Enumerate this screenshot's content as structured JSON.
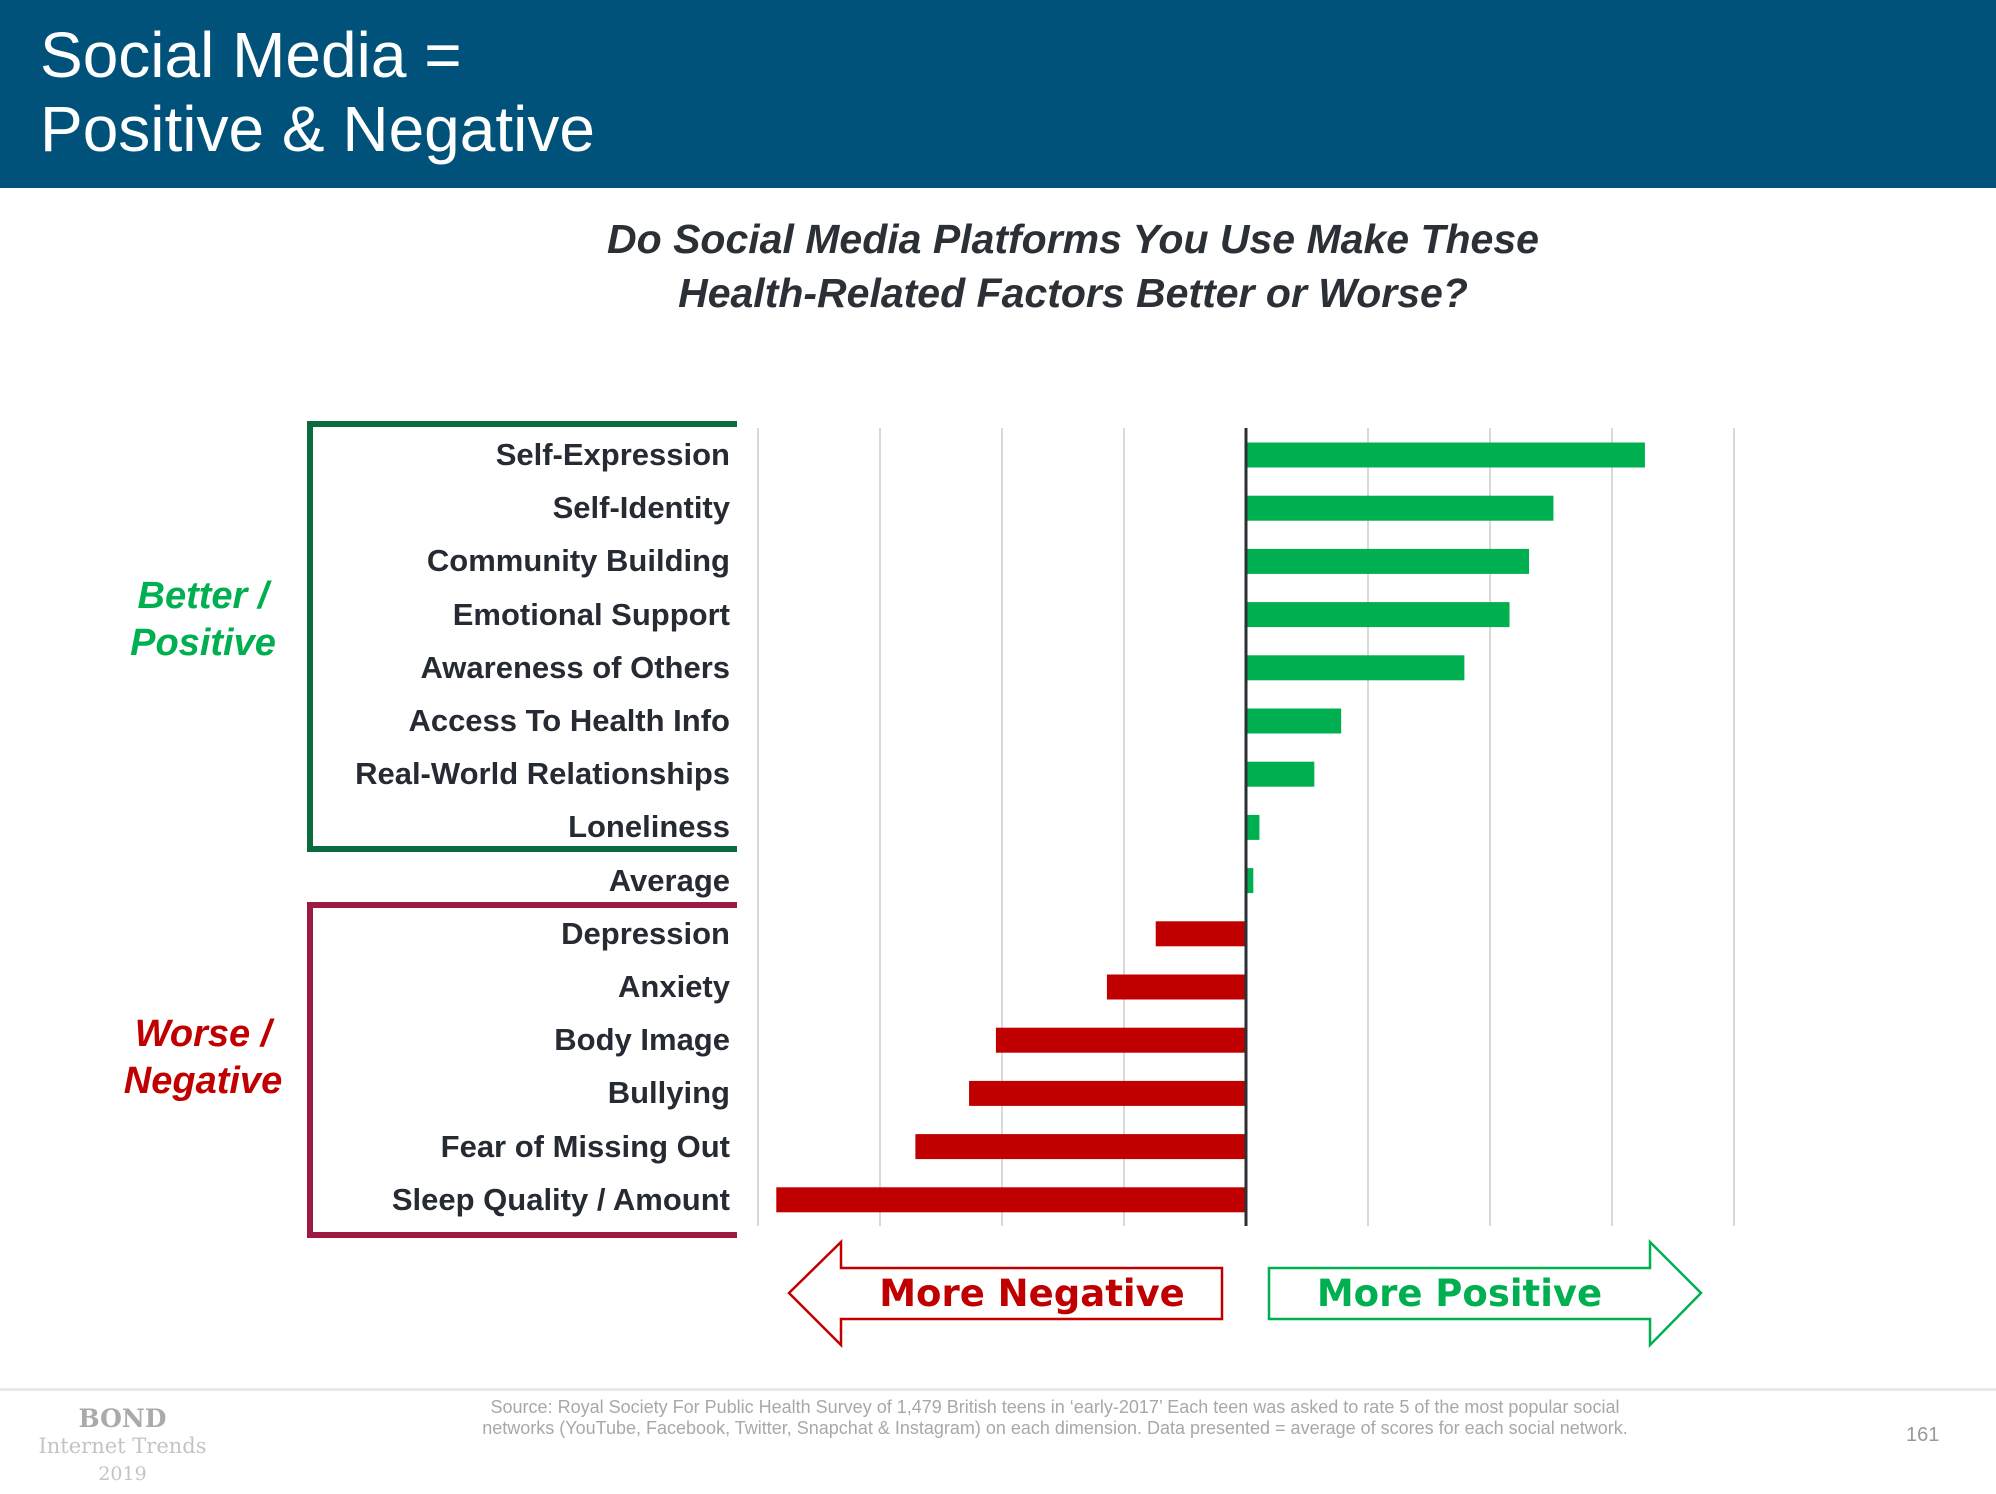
{
  "header": {
    "title_line1": "Social Media =",
    "title_line2": "Positive & Negative",
    "background_color": "#01527a"
  },
  "groups": {
    "positive": {
      "line1": "Better /",
      "line2": "Positive",
      "color": "#00b050",
      "bracket_color": "#0b6b3e"
    },
    "negative": {
      "line1": "Worse /",
      "line2": "Negative",
      "color": "#c00000",
      "bracket_color": "#9b1b42"
    }
  },
  "arrows": {
    "negative_label": "More Negative",
    "positive_label": "More Positive"
  },
  "chart_data": {
    "type": "bar",
    "orientation": "horizontal",
    "title": "Do Social Media Platforms You Use Make These Health-Related Factors Better or Worse?",
    "title_line1": "Do Social Media Platforms You Use Make These",
    "title_line2": "Health-Related Factors Better or Worse?",
    "xlabel": "",
    "ylabel": "",
    "xlim": [
      -4,
      4
    ],
    "grid": true,
    "tick_labels_shown": false,
    "categories": [
      "Self-Expression",
      "Self-Identity",
      "Community Building",
      "Emotional Support",
      "Awareness of Others",
      "Access To Health Info",
      "Real-World Relationships",
      "Loneliness",
      "Average",
      "Depression",
      "Anxiety",
      "Body Image",
      "Bullying",
      "Fear of Missing Out",
      "Sleep Quality / Amount"
    ],
    "values": [
      3.27,
      2.52,
      2.32,
      2.16,
      1.79,
      0.78,
      0.56,
      0.11,
      0.06,
      -0.74,
      -1.14,
      -2.05,
      -2.27,
      -2.71,
      -3.85
    ],
    "positive_color": "#00b050",
    "negative_color": "#c00000",
    "legend": "none"
  },
  "footer": {
    "logo_brand": "BOND",
    "logo_sub": "Internet Trends",
    "logo_year": "2019",
    "source_line1": "Source: Royal Society For Public Health Survey of 1,479 British teens in ‘early-2017’  Each teen was asked to rate 5 of the most popular social",
    "source_line2": "networks (YouTube, Facebook, Twitter, Snapchat & Instagram) on each dimension.  Data presented = average of scores for each social network.",
    "page_number": "161"
  }
}
